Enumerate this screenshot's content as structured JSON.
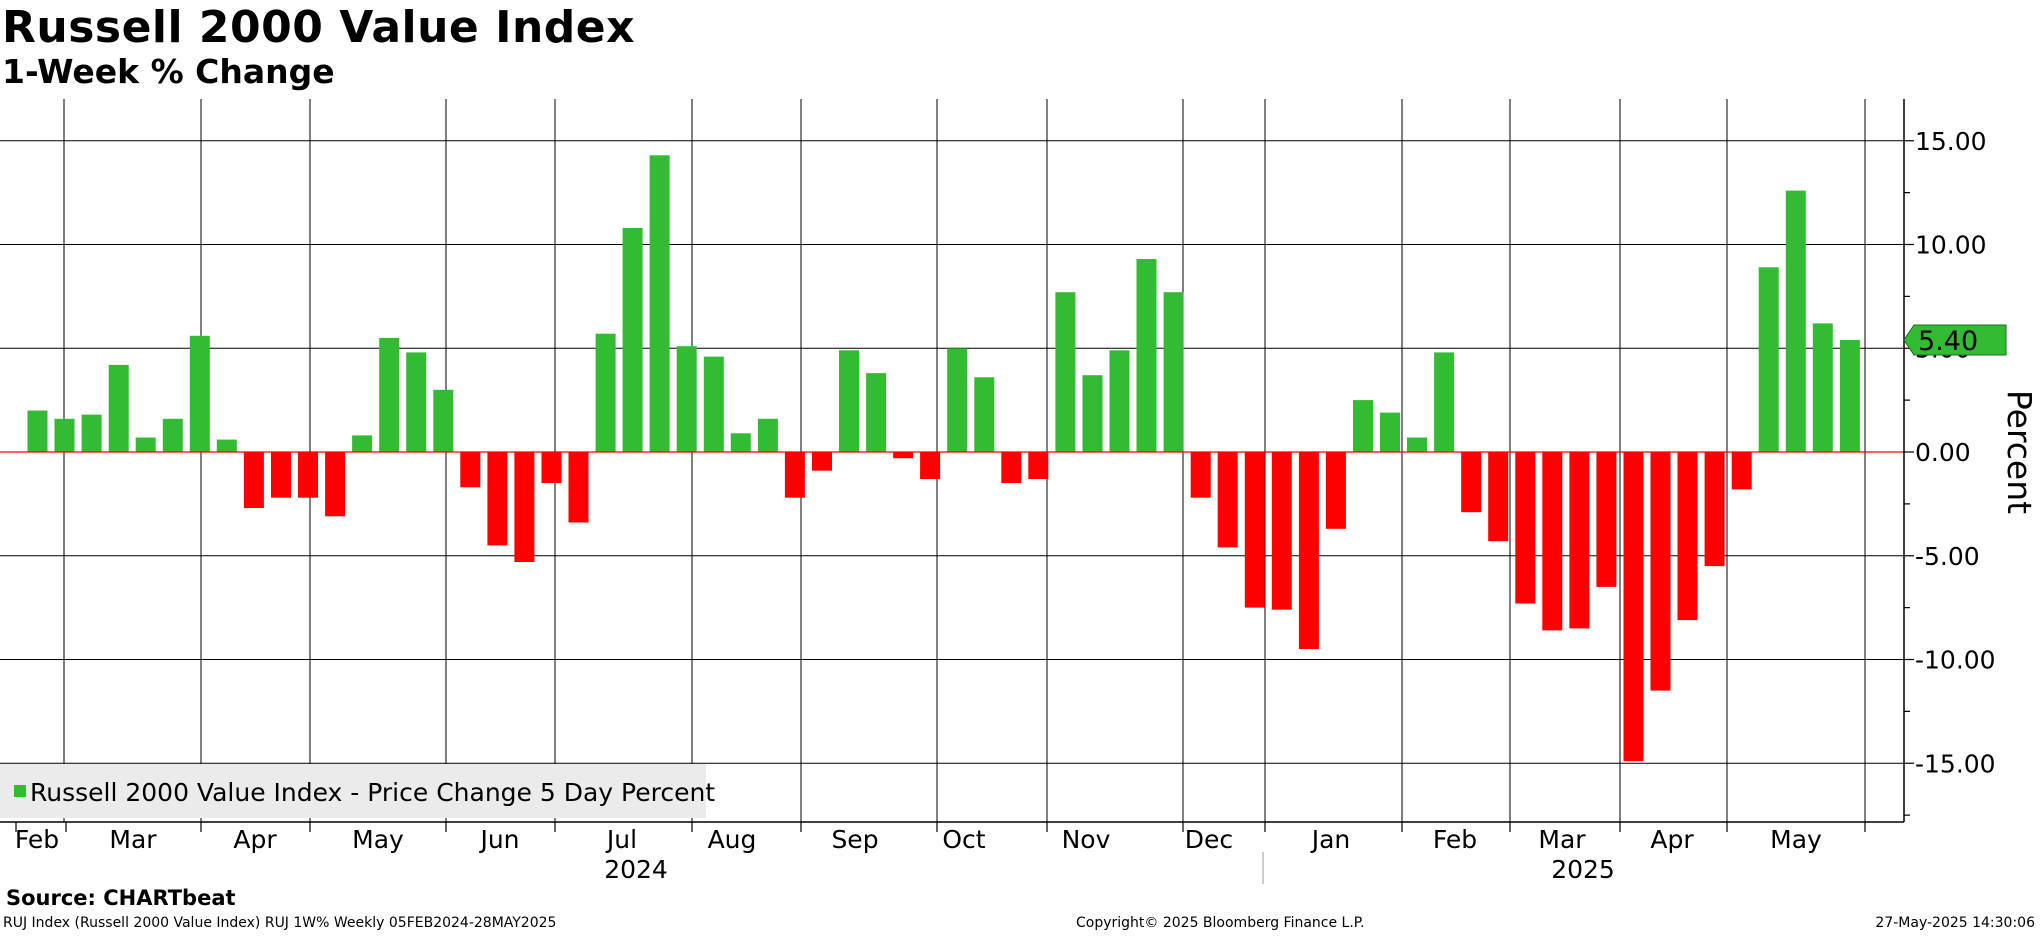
{
  "header": {
    "title": "Russell 2000 Value Index",
    "subtitle": "1-Week % Change"
  },
  "footer": {
    "source": "Source: CHARTbeat",
    "description": "RUJ Index (Russell 2000 Value Index) RUJ 1W%  Weekly 05FEB2024-28MAY2025",
    "copyright": "Copyright© 2025 Bloomberg Finance L.P.",
    "timestamp": "27-May-2025 14:30:06"
  },
  "colors": {
    "positive": "#33bb33",
    "negative": "#ff0000",
    "zero_line": "#ff0000",
    "grid": "#000000",
    "last_value_box": "#33bb33"
  },
  "chart_data": {
    "type": "bar",
    "title": "Russell 2000 Value Index",
    "subtitle": "1-Week % Change",
    "ylabel": "Percent",
    "xlabel": "",
    "ylim": [
      -17.5,
      17.5
    ],
    "yticks": [
      15,
      10,
      5,
      0,
      -5,
      -10,
      -15
    ],
    "ytick_labels": [
      "15.00",
      "10.00",
      "5.00",
      "0.00",
      "-5.00",
      "-10.00",
      "-15.00"
    ],
    "grid": true,
    "legend_position": "bottom-left",
    "legend": [
      "Russell 2000 Value Index - Price Change 5 Day Percent"
    ],
    "last_value": 5.4,
    "last_value_label": "5.40",
    "month_labels": [
      "Feb",
      "Mar",
      "Apr",
      "May",
      "Jun",
      "Jul",
      "Aug",
      "Sep",
      "Oct",
      "Nov",
      "Dec",
      "Jan",
      "Feb",
      "Mar",
      "Apr",
      "May"
    ],
    "year_labels": [
      "2024",
      "2025"
    ],
    "series": [
      {
        "name": "Russell 2000 Value Index - Price Change 5 Day Percent",
        "values": [
          2.0,
          1.6,
          1.8,
          4.2,
          0.7,
          1.6,
          5.6,
          0.6,
          -2.7,
          -2.2,
          -2.2,
          -3.1,
          0.8,
          5.5,
          4.8,
          3.0,
          -1.7,
          -4.5,
          -5.3,
          -1.5,
          -3.4,
          5.7,
          10.8,
          14.3,
          5.1,
          4.6,
          0.9,
          1.6,
          -2.2,
          -0.9,
          4.9,
          3.8,
          -0.3,
          -1.3,
          5.0,
          3.6,
          -1.5,
          -1.3,
          7.7,
          3.7,
          4.9,
          9.3,
          7.7,
          -2.2,
          -4.6,
          -7.5,
          -7.6,
          -9.5,
          -3.7,
          2.5,
          1.9,
          0.7,
          4.8,
          -2.9,
          -4.3,
          -7.3,
          -8.6,
          -8.5,
          -6.5,
          -14.9,
          -11.5,
          -8.1,
          -5.5,
          -1.8,
          8.9,
          12.6,
          6.2,
          5.4
        ]
      }
    ]
  }
}
